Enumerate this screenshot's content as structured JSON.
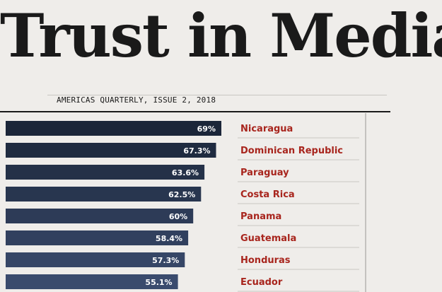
{
  "header": {
    "title": "Trust in Media",
    "subtitle": "AMERICAS QUARTERLY, ISSUE 2, 2018"
  },
  "colors": {
    "background": "#efedea",
    "bar_gradient": [
      "#1b2639",
      "#3a4b6d"
    ],
    "label": "#a8251d",
    "rule": "#1a1a1a"
  },
  "chart_data": {
    "type": "bar",
    "orientation": "horizontal",
    "title": "Trust in Media",
    "subtitle": "AMERICAS QUARTERLY, ISSUE 2, 2018",
    "xlabel": "",
    "ylabel": "",
    "categories": [
      "Nicaragua",
      "Dominican Republic",
      "Paraguay",
      "Costa Rica",
      "Panama",
      "Guatemala",
      "Honduras",
      "Ecuador"
    ],
    "values": [
      69,
      67.3,
      63.6,
      62.5,
      60,
      58.4,
      57.3,
      55.1
    ],
    "value_labels": [
      "69%",
      "67.3%",
      "63.6%",
      "62.5%",
      "60%",
      "58.4%",
      "57.3%",
      "55.1%"
    ],
    "xlim": [
      0,
      69
    ],
    "grid": false,
    "legend": "none"
  }
}
